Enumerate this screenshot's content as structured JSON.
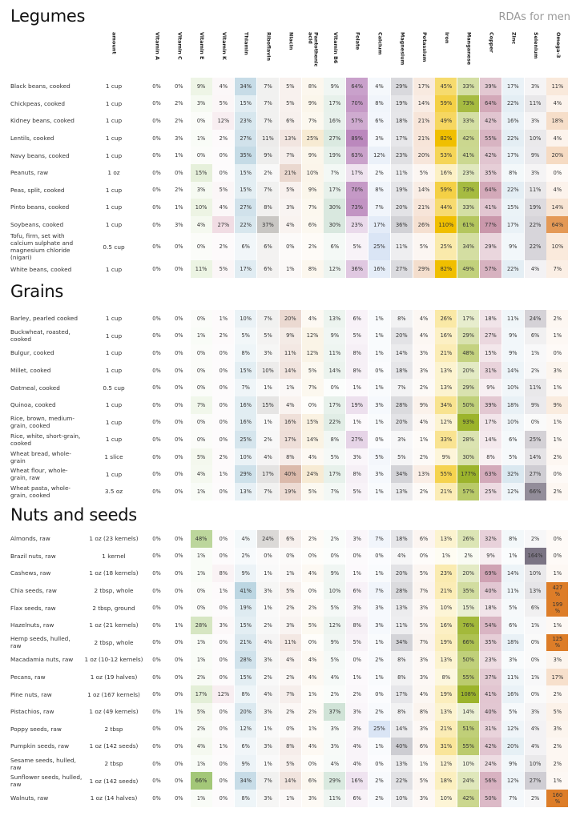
{
  "header": {
    "subtitle": "RDAs for men"
  },
  "columns": [
    "amount",
    "Vitamin A",
    "Vitamin C",
    "Vitamin E",
    "Vitamin K",
    "Thiamin",
    "Riboflavin",
    "Niacin",
    "Pantothenic acid",
    "Vitamin B6",
    "Folate",
    "Calcium",
    "Magnesium",
    "Potassium",
    "Iron",
    "Manganese",
    "Copper",
    "Zinc",
    "Selenium",
    "Omega-3"
  ],
  "column_colors": [
    "#ffffff",
    "#ffffff",
    "#ffffff",
    "#8fbb5a",
    "#d8a2b4",
    "#7fb0c8",
    "#8f8a84",
    "#b8775a",
    "#e6c27a",
    "#9cc4ac",
    "#bb88bd",
    "#8fb0e0",
    "#9c9ca6",
    "#e2a77c",
    "#f0bf00",
    "#9cb42c",
    "#c792a6",
    "#a6c8dc",
    "#7b7484",
    "#dd7d28"
  ],
  "sections": [
    {
      "title": "Legumes",
      "rows": [
        {
          "name": "Black beans, cooked",
          "amount": "1 cup",
          "values": [
            0,
            0,
            9,
            4,
            34,
            7,
            5,
            8,
            9,
            64,
            4,
            29,
            17,
            45,
            33,
            39,
            17,
            3,
            11
          ]
        },
        {
          "name": "Chickpeas, cooked",
          "amount": "1 cup",
          "values": [
            0,
            2,
            3,
            5,
            15,
            7,
            5,
            9,
            17,
            70,
            8,
            19,
            14,
            59,
            73,
            64,
            22,
            11,
            4
          ]
        },
        {
          "name": "Kidney beans, cooked",
          "amount": "1 cup",
          "values": [
            0,
            2,
            0,
            12,
            23,
            7,
            6,
            7,
            16,
            57,
            6,
            18,
            21,
            49,
            33,
            42,
            16,
            3,
            18
          ]
        },
        {
          "name": "Lentils, cooked",
          "amount": "1 cup",
          "values": [
            0,
            3,
            1,
            2,
            27,
            11,
            13,
            25,
            27,
            89,
            3,
            17,
            21,
            82,
            42,
            55,
            22,
            10,
            4
          ]
        },
        {
          "name": "Navy beans, cooked",
          "amount": "1 cup",
          "values": [
            0,
            1,
            0,
            0,
            35,
            9,
            7,
            9,
            19,
            63,
            12,
            23,
            20,
            53,
            41,
            42,
            17,
            9,
            20
          ]
        },
        {
          "name": "Peanuts, raw",
          "amount": "1 oz",
          "values": [
            0,
            0,
            15,
            0,
            15,
            2,
            21,
            10,
            7,
            17,
            2,
            11,
            5,
            16,
            23,
            35,
            8,
            3,
            0
          ]
        },
        {
          "name": "Peas, split, cooked",
          "amount": "1 cup",
          "values": [
            0,
            2,
            3,
            5,
            15,
            7,
            5,
            9,
            17,
            70,
            8,
            19,
            14,
            59,
            73,
            64,
            22,
            11,
            4
          ]
        },
        {
          "name": "Pinto beans, cooked",
          "amount": "1 cup",
          "values": [
            0,
            1,
            10,
            4,
            27,
            8,
            3,
            7,
            30,
            73,
            7,
            20,
            21,
            44,
            33,
            41,
            15,
            19,
            14
          ]
        },
        {
          "name": "Soybeans, cooked",
          "amount": "1 cup",
          "values": [
            0,
            3,
            4,
            27,
            22,
            37,
            4,
            6,
            30,
            23,
            17,
            36,
            26,
            110,
            61,
            77,
            17,
            22,
            64
          ]
        },
        {
          "name": "Tofu, firm, set with calcium sulphate and magnesium chloride (nigari)",
          "amount": "0.5 cup",
          "tall": true,
          "values": [
            0,
            0,
            0,
            2,
            6,
            6,
            0,
            2,
            6,
            5,
            25,
            11,
            5,
            25,
            34,
            29,
            9,
            22,
            10
          ]
        },
        {
          "name": "White beans, cooked",
          "amount": "1 cup",
          "values": [
            0,
            0,
            11,
            5,
            17,
            6,
            1,
            8,
            12,
            36,
            16,
            27,
            29,
            82,
            49,
            57,
            22,
            4,
            7
          ]
        }
      ]
    },
    {
      "title": "Grains",
      "rows": [
        {
          "name": "Barley, pearled cooked",
          "amount": "1 cup",
          "values": [
            0,
            0,
            0,
            1,
            10,
            7,
            20,
            4,
            13,
            6,
            1,
            8,
            4,
            26,
            17,
            18,
            11,
            24,
            2
          ]
        },
        {
          "name": "Buckwheat, roasted, cooked",
          "amount": "1 cup",
          "values": [
            0,
            0,
            1,
            2,
            5,
            5,
            9,
            12,
            9,
            5,
            1,
            20,
            4,
            16,
            29,
            27,
            9,
            6,
            1
          ]
        },
        {
          "name": "Bulgur, cooked",
          "amount": "1 cup",
          "values": [
            0,
            0,
            0,
            0,
            8,
            3,
            11,
            12,
            11,
            8,
            1,
            14,
            3,
            21,
            48,
            15,
            9,
            1,
            0
          ]
        },
        {
          "name": "Millet, cooked",
          "amount": "1 cup",
          "values": [
            0,
            0,
            0,
            0,
            15,
            10,
            14,
            5,
            14,
            8,
            0,
            18,
            3,
            13,
            20,
            31,
            14,
            2,
            3
          ]
        },
        {
          "name": "Oatmeal, cooked",
          "amount": "0.5 cup",
          "values": [
            0,
            0,
            0,
            0,
            7,
            1,
            1,
            7,
            0,
            1,
            1,
            7,
            2,
            13,
            29,
            9,
            10,
            11,
            1
          ]
        },
        {
          "name": "Quinoa, cooked",
          "amount": "1 cup",
          "values": [
            0,
            0,
            7,
            0,
            16,
            15,
            4,
            0,
            17,
            19,
            3,
            28,
            9,
            34,
            50,
            39,
            18,
            9,
            9
          ]
        },
        {
          "name": "Rice, brown, medium-grain, cooked",
          "amount": "1 cup",
          "values": [
            0,
            0,
            0,
            0,
            16,
            1,
            16,
            15,
            22,
            1,
            1,
            20,
            4,
            12,
            93,
            17,
            10,
            0,
            1
          ]
        },
        {
          "name": "Rice, white, short-grain, cooked",
          "amount": "1 cup",
          "values": [
            0,
            0,
            0,
            0,
            25,
            2,
            17,
            14,
            8,
            27,
            0,
            3,
            1,
            33,
            28,
            14,
            6,
            25,
            1
          ]
        },
        {
          "name": "Wheat bread, whole-grain",
          "amount": "1 slice",
          "values": [
            0,
            0,
            5,
            2,
            10,
            4,
            8,
            4,
            5,
            3,
            5,
            5,
            2,
            9,
            30,
            8,
            5,
            14,
            2
          ]
        },
        {
          "name": "Wheat flour, whole-grain, raw",
          "amount": "1 cup",
          "values": [
            0,
            0,
            4,
            1,
            29,
            17,
            40,
            24,
            17,
            8,
            3,
            34,
            13,
            55,
            177,
            63,
            32,
            27,
            0
          ]
        },
        {
          "name": "Wheat pasta, whole-grain, cooked",
          "amount": "3.5 oz",
          "values": [
            0,
            0,
            1,
            0,
            13,
            7,
            19,
            5,
            7,
            5,
            1,
            13,
            2,
            21,
            57,
            25,
            12,
            66,
            2
          ]
        }
      ]
    },
    {
      "title": "Nuts and seeds",
      "rows": [
        {
          "name": "Almonds, raw",
          "amount": "1 oz (23 kernels)",
          "values": [
            0,
            0,
            48,
            0,
            4,
            24,
            6,
            2,
            2,
            3,
            7,
            18,
            6,
            13,
            26,
            32,
            8,
            2,
            0
          ]
        },
        {
          "name": "Brazil nuts, raw",
          "amount": "1 kernel",
          "values": [
            0,
            0,
            1,
            0,
            2,
            0,
            0,
            0,
            0,
            0,
            0,
            4,
            0,
            1,
            2,
            9,
            1,
            164,
            0
          ]
        },
        {
          "name": "Cashews, raw",
          "amount": "1 oz (18 kernels)",
          "values": [
            0,
            0,
            1,
            8,
            9,
            1,
            1,
            4,
            9,
            1,
            1,
            20,
            5,
            23,
            20,
            69,
            14,
            10,
            1
          ]
        },
        {
          "name": "Chia seeds, raw",
          "amount": "2 tbsp, whole",
          "values": [
            0,
            0,
            0,
            1,
            41,
            3,
            5,
            0,
            10,
            6,
            7,
            28,
            7,
            21,
            35,
            40,
            11,
            13,
            427
          ]
        },
        {
          "name": "Flax seeds, raw",
          "amount": "2 tbsp, ground",
          "values": [
            0,
            0,
            0,
            0,
            19,
            1,
            2,
            2,
            5,
            3,
            3,
            13,
            3,
            10,
            15,
            18,
            5,
            6,
            199
          ]
        },
        {
          "name": "Hazelnuts, raw",
          "amount": "1 oz (21 kernels)",
          "values": [
            0,
            1,
            28,
            3,
            15,
            2,
            3,
            5,
            12,
            8,
            3,
            11,
            5,
            16,
            76,
            54,
            6,
            1,
            1
          ]
        },
        {
          "name": "Hemp seeds, hulled, raw",
          "amount": "2 tbsp, whole",
          "values": [
            0,
            0,
            1,
            0,
            21,
            4,
            11,
            0,
            9,
            5,
            1,
            34,
            7,
            19,
            66,
            35,
            18,
            0,
            125
          ]
        },
        {
          "name": "Macadamia nuts, raw",
          "amount": "1 oz (10-12 kernels)",
          "values": [
            0,
            0,
            1,
            0,
            28,
            3,
            4,
            4,
            5,
            0,
            2,
            8,
            3,
            13,
            50,
            23,
            3,
            0,
            3
          ]
        },
        {
          "name": "Pecans, raw",
          "amount": "1 oz (19 halves)",
          "values": [
            0,
            0,
            2,
            0,
            15,
            2,
            2,
            4,
            4,
            1,
            1,
            8,
            3,
            8,
            55,
            37,
            11,
            1,
            17
          ]
        },
        {
          "name": "Pine nuts, raw",
          "amount": "1 oz (167 kernels)",
          "values": [
            0,
            0,
            17,
            12,
            8,
            4,
            7,
            1,
            2,
            2,
            0,
            17,
            4,
            19,
            108,
            41,
            16,
            0,
            2
          ]
        },
        {
          "name": "Pistachios, raw",
          "amount": "1 oz (49 kernels)",
          "values": [
            0,
            1,
            5,
            0,
            20,
            3,
            2,
            2,
            37,
            3,
            2,
            8,
            8,
            13,
            14,
            40,
            5,
            3,
            5
          ]
        },
        {
          "name": "Poppy seeds, raw",
          "amount": "2 tbsp",
          "values": [
            0,
            0,
            2,
            0,
            12,
            1,
            0,
            1,
            3,
            3,
            25,
            14,
            3,
            21,
            51,
            31,
            12,
            4,
            3
          ]
        },
        {
          "name": "Pumpkin seeds, raw",
          "amount": "1 oz (142 seeds)",
          "values": [
            0,
            0,
            4,
            1,
            6,
            3,
            8,
            4,
            3,
            4,
            1,
            40,
            6,
            31,
            55,
            42,
            20,
            4,
            2
          ]
        },
        {
          "name": "Sesame seeds, hulled, raw",
          "amount": "2 tbsp",
          "values": [
            0,
            0,
            1,
            0,
            9,
            1,
            5,
            0,
            4,
            4,
            0,
            13,
            1,
            12,
            10,
            24,
            9,
            10,
            2
          ]
        },
        {
          "name": "Sunflower seeds, hulled, raw",
          "amount": "1 oz (142 seeds)",
          "values": [
            0,
            0,
            66,
            0,
            34,
            7,
            14,
            6,
            29,
            16,
            2,
            22,
            5,
            18,
            24,
            56,
            12,
            27,
            1
          ]
        },
        {
          "name": "Walnuts, raw",
          "amount": "1 oz (14 halves)",
          "values": [
            0,
            0,
            1,
            0,
            8,
            3,
            1,
            3,
            11,
            6,
            2,
            10,
            3,
            10,
            42,
            50,
            7,
            2,
            160
          ]
        }
      ]
    }
  ]
}
